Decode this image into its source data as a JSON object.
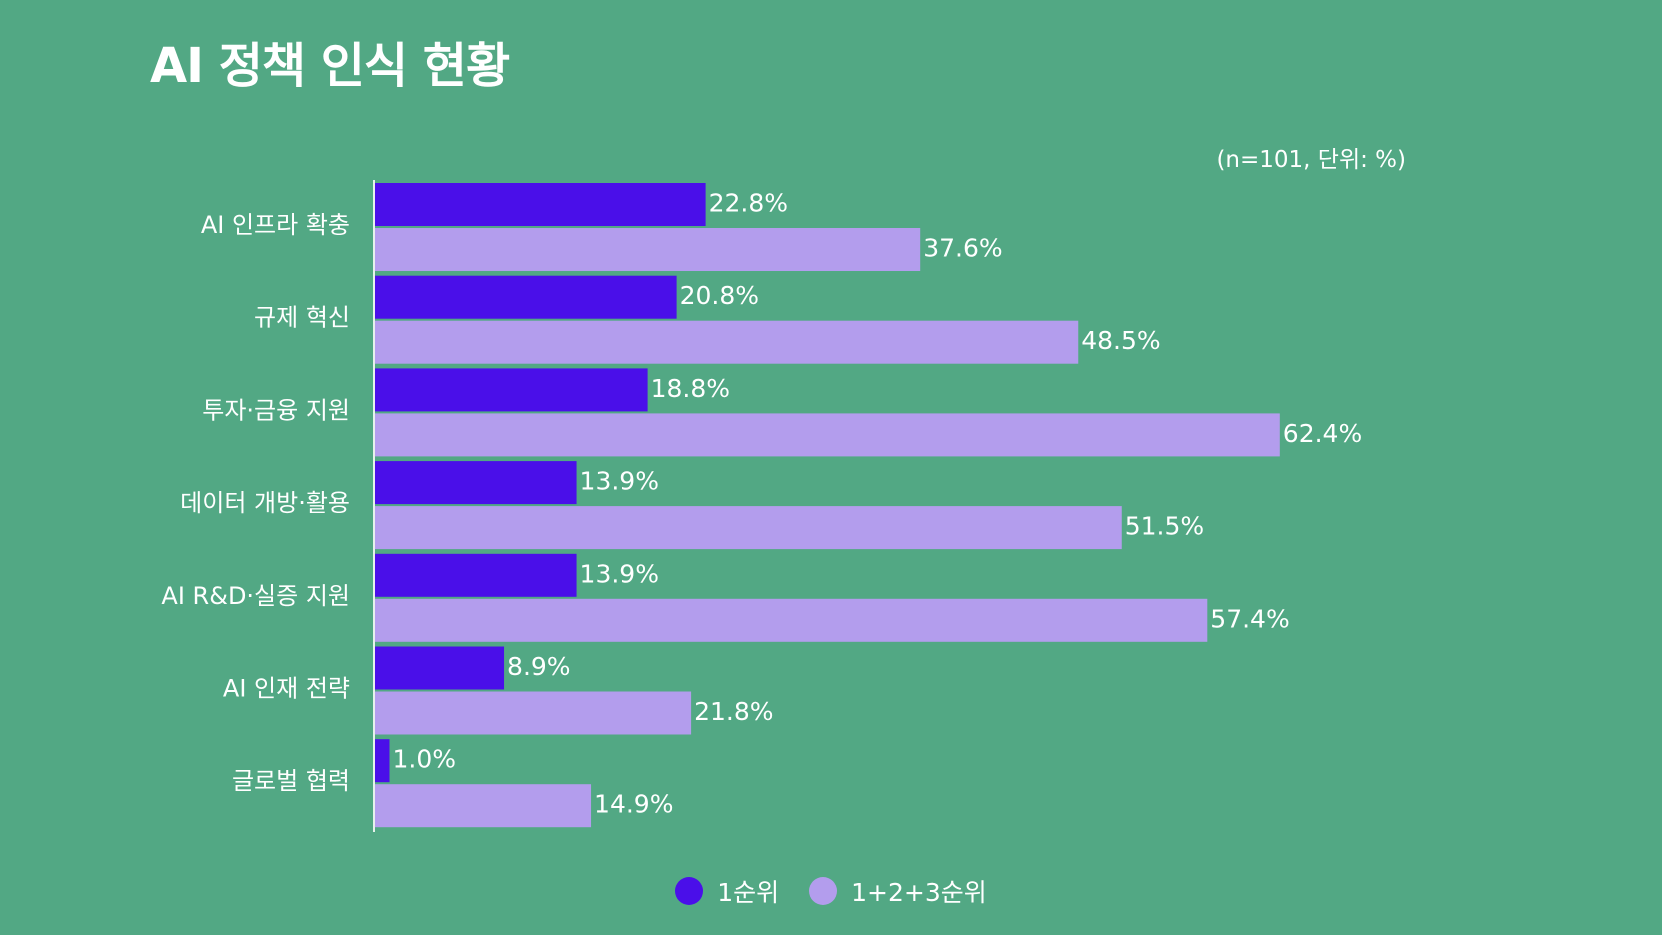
{
  "chart_data": {
    "type": "bar",
    "orientation": "horizontal",
    "title": "AI 정책 인식 현황",
    "note": "(n=101, 단위: %)",
    "categories": [
      "AI 인프라 확충",
      "규제 혁신",
      "투자·금융 지원",
      "데이터 개방·활용",
      "AI R&D·실증 지원",
      "AI 인재 전략",
      "글로벌 협력"
    ],
    "series": [
      {
        "name": "1순위",
        "color": "#4a0fe9",
        "values": [
          22.8,
          20.8,
          18.8,
          13.9,
          13.9,
          8.9,
          1.0
        ],
        "labels": [
          "22.8%",
          "20.8%",
          "18.8%",
          "13.9%",
          "13.9%",
          "8.9%",
          "1.0%"
        ]
      },
      {
        "name": "1+2+3순위",
        "color": "#b39ded",
        "values": [
          37.6,
          48.5,
          62.4,
          51.5,
          57.4,
          21.8,
          14.9
        ],
        "labels": [
          "37.6%",
          "48.5%",
          "62.4%",
          "51.5%",
          "57.4%",
          "21.8%",
          "14.9%"
        ]
      }
    ],
    "legend_position": "bottom",
    "grid": false
  }
}
